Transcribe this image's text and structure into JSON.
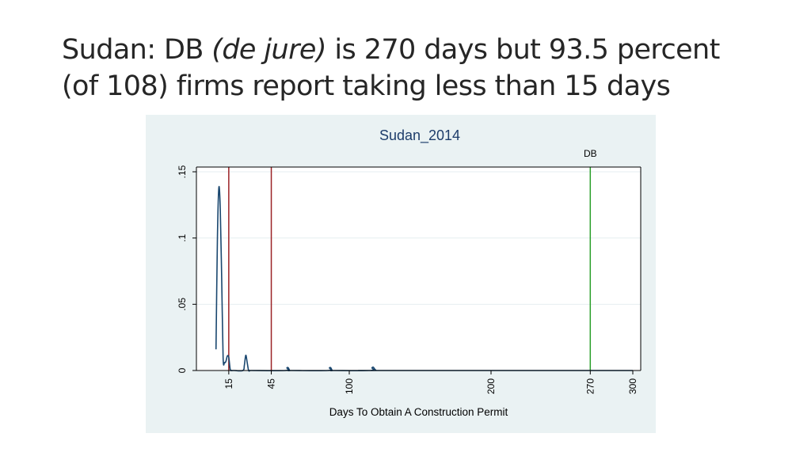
{
  "slide": {
    "title_parts": [
      {
        "text": "Sudan:  DB ",
        "italic": false
      },
      {
        "text": "(de jure)",
        "italic": true
      },
      {
        "text": " is 270 days but 93.5 percent",
        "italic": false
      }
    ],
    "title_line2": "(of 108) firms report taking less than 15 days"
  },
  "chart_data": {
    "type": "line",
    "title": "Sudan_2014",
    "xlabel": "Days To Obtain A Construction Permit",
    "ylabel": "",
    "xlim": [
      0,
      300
    ],
    "ylim": [
      0,
      0.15
    ],
    "x_ticks": [
      {
        "value": 15,
        "label": "15"
      },
      {
        "value": 45,
        "label": "45"
      },
      {
        "value": 100,
        "label": "100"
      },
      {
        "value": 200,
        "label": "200"
      },
      {
        "value": 270,
        "label": "270"
      },
      {
        "value": 300,
        "label": "300"
      }
    ],
    "y_ticks": [
      {
        "value": 0,
        "label": "0"
      },
      {
        "value": 0.05,
        "label": ".05"
      },
      {
        "value": 0.1,
        "label": ".1"
      },
      {
        "value": 0.15,
        "label": ".15"
      }
    ],
    "grid": true,
    "series": [
      {
        "color": "#1a476f",
        "x": [
          6,
          7,
          8,
          9,
          10,
          11,
          12,
          13,
          14,
          15,
          16,
          17,
          18,
          19,
          25,
          26,
          27,
          28,
          29,
          30,
          31,
          55,
          56,
          57,
          58,
          59,
          85,
          86,
          87,
          88,
          89,
          115,
          116,
          117,
          118,
          119,
          120,
          300
        ],
        "y": [
          0.016,
          0.1,
          0.138,
          0.122,
          0.07,
          0.01,
          0.006,
          0.007,
          0.011,
          0.01,
          0.001,
          0,
          0,
          0,
          0,
          0.004,
          0.0115,
          0.006,
          0,
          0,
          0,
          0,
          0.002,
          0.002,
          0,
          0,
          0,
          0.002,
          0.002,
          0,
          0,
          0,
          0.002,
          0.0025,
          0.001,
          0,
          0,
          0
        ]
      }
    ],
    "reference_lines": [
      {
        "x": 15,
        "color": "#9b2226",
        "label": ""
      },
      {
        "x": 45,
        "color": "#9b2226",
        "label": ""
      },
      {
        "x": 270,
        "color": "#2ca02c",
        "label": "DB"
      }
    ]
  }
}
